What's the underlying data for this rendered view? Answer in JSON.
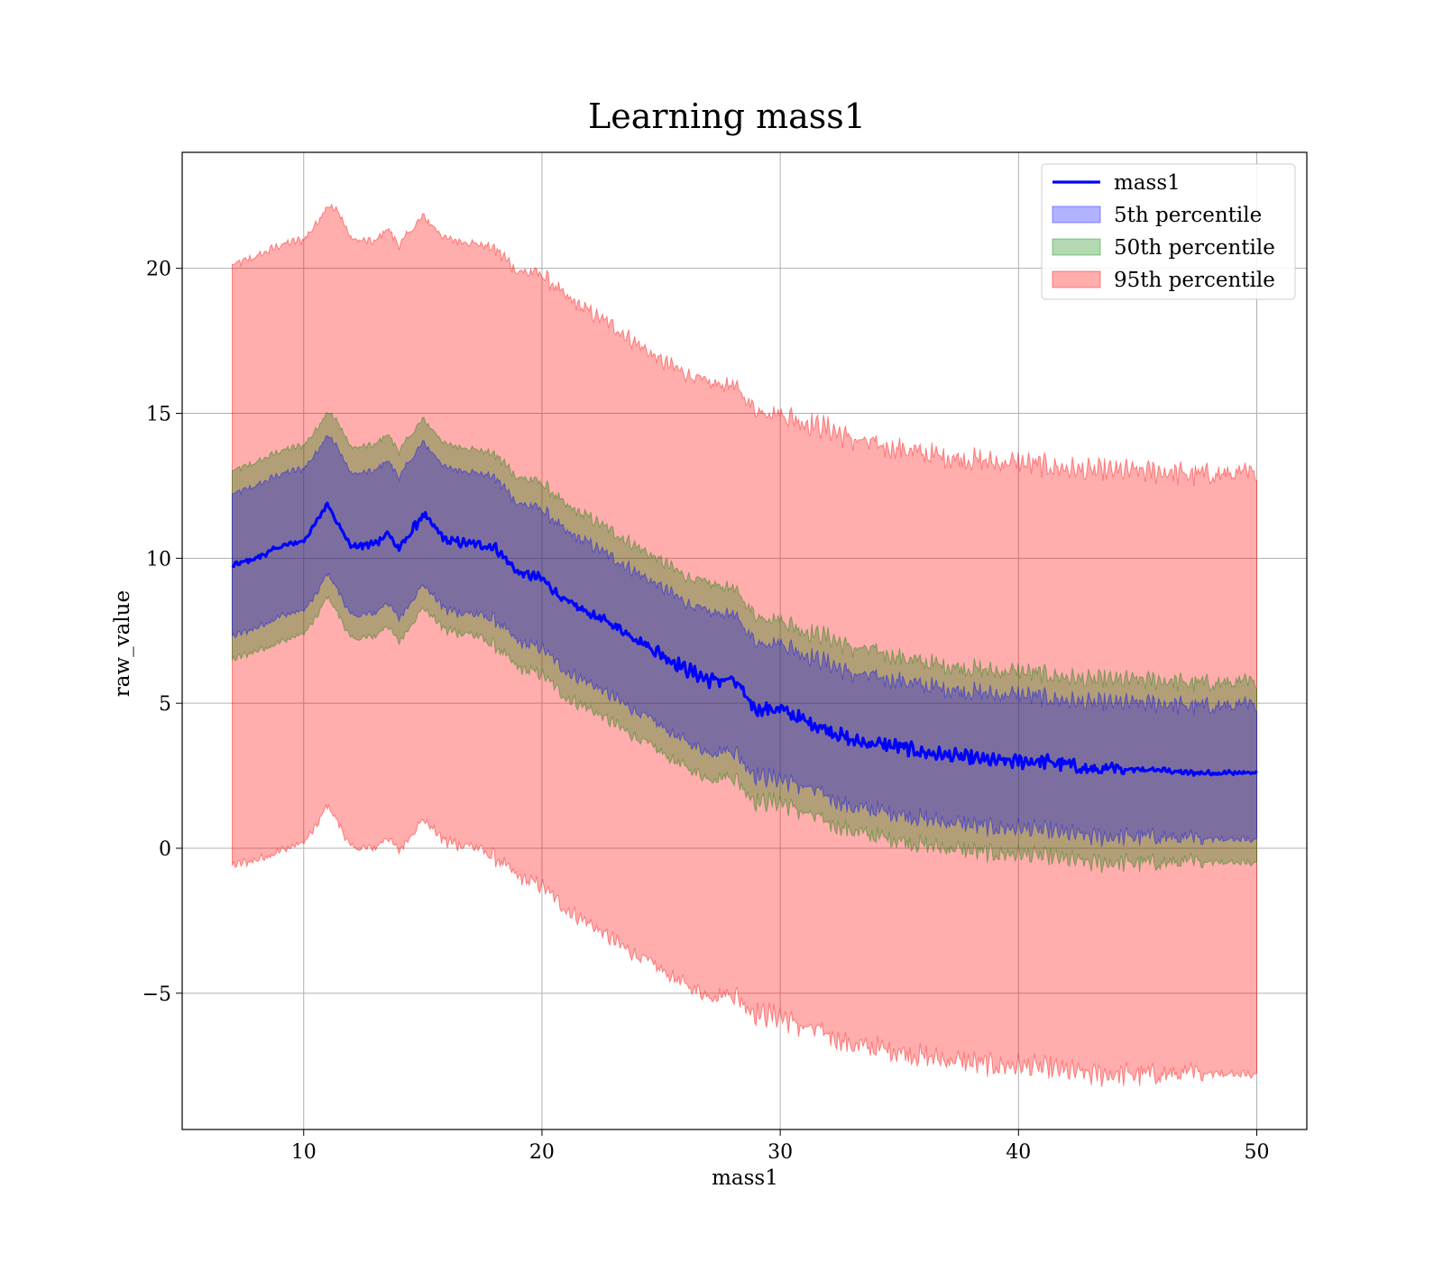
{
  "chart_data": {
    "type": "area",
    "title": "Learning mass1",
    "xlabel": "mass1",
    "ylabel": "raw_value",
    "xlim": [
      4.9,
      52.1
    ],
    "ylim": [
      -9.7,
      24.0
    ],
    "xticks": [
      10,
      20,
      30,
      40,
      50
    ],
    "yticks": [
      -5,
      0,
      5,
      10,
      15,
      20
    ],
    "xtick_labels": [
      "10",
      "20",
      "30",
      "40",
      "50"
    ],
    "ytick_labels": [
      "−5",
      "0",
      "5",
      "10",
      "15",
      "20"
    ],
    "grid": true,
    "legend_position": "top-right",
    "line": {
      "name": "mass1",
      "color": "#0000ff",
      "x": [
        7,
        8,
        9,
        10,
        10.5,
        11,
        11.5,
        12,
        13,
        13.5,
        14,
        15,
        16,
        17,
        18,
        19,
        20,
        21,
        22,
        23,
        24,
        25,
        26,
        27,
        28,
        29,
        30,
        31,
        32,
        33,
        34,
        35,
        36,
        37,
        38,
        39,
        40,
        41,
        42,
        43,
        44,
        45,
        46,
        47,
        48,
        49,
        50
      ],
      "y": [
        9.75,
        10.0,
        10.4,
        10.6,
        11.2,
        11.9,
        11.1,
        10.4,
        10.5,
        10.9,
        10.3,
        11.5,
        10.6,
        10.5,
        10.4,
        9.5,
        9.3,
        8.5,
        8.1,
        7.7,
        7.2,
        6.7,
        6.2,
        5.8,
        5.8,
        4.8,
        4.8,
        4.4,
        4.1,
        3.7,
        3.6,
        3.5,
        3.3,
        3.2,
        3.1,
        3.0,
        3.0,
        3.0,
        2.9,
        2.7,
        2.7,
        2.7,
        2.7,
        2.6,
        2.6,
        2.6,
        2.6
      ]
    },
    "series": [
      {
        "name": "95th percentile",
        "color": "#ff0000",
        "opacity": 0.32,
        "x": [
          7,
          8,
          9,
          10,
          10.5,
          11,
          11.5,
          12,
          13,
          13.5,
          14,
          15,
          16,
          17,
          18,
          19,
          20,
          21,
          22,
          23,
          24,
          25,
          26,
          27,
          28,
          29,
          30,
          31,
          32,
          33,
          34,
          35,
          36,
          37,
          38,
          39,
          40,
          41,
          42,
          43,
          44,
          45,
          46,
          47,
          48,
          49,
          50
        ],
        "upper": [
          20.1,
          20.4,
          20.8,
          21.0,
          21.5,
          22.2,
          21.9,
          21.0,
          20.9,
          21.4,
          20.8,
          21.8,
          21.0,
          20.9,
          20.7,
          19.9,
          19.8,
          19.0,
          18.5,
          18.0,
          17.4,
          16.8,
          16.4,
          16.0,
          16.0,
          15.1,
          15.0,
          14.7,
          14.5,
          14.1,
          13.9,
          13.8,
          13.6,
          13.5,
          13.4,
          13.3,
          13.3,
          13.2,
          13.1,
          13.0,
          13.0,
          13.0,
          13.0,
          12.9,
          12.9,
          12.9,
          12.9
        ],
        "lower": [
          -0.6,
          -0.4,
          -0.1,
          0.2,
          0.7,
          1.5,
          0.8,
          0.0,
          0.0,
          0.4,
          -0.1,
          1.0,
          0.2,
          0.1,
          -0.3,
          -1.0,
          -1.3,
          -2.1,
          -2.6,
          -3.2,
          -3.7,
          -4.2,
          -4.7,
          -5.1,
          -5.0,
          -5.7,
          -5.8,
          -6.2,
          -6.4,
          -6.8,
          -6.9,
          -7.0,
          -7.2,
          -7.3,
          -7.4,
          -7.5,
          -7.5,
          -7.6,
          -7.7,
          -7.8,
          -7.8,
          -7.8,
          -7.8,
          -7.8,
          -7.8,
          -7.8,
          -7.8
        ]
      },
      {
        "name": "50th percentile",
        "color": "#008000",
        "opacity": 0.3,
        "x": [
          7,
          8,
          9,
          10,
          10.5,
          11,
          11.5,
          12,
          13,
          13.5,
          14,
          15,
          16,
          17,
          18,
          19,
          20,
          21,
          22,
          23,
          24,
          25,
          26,
          27,
          28,
          29,
          30,
          31,
          32,
          33,
          34,
          35,
          36,
          37,
          38,
          39,
          40,
          41,
          42,
          43,
          44,
          45,
          46,
          47,
          48,
          49,
          50
        ],
        "upper": [
          13.0,
          13.3,
          13.7,
          13.9,
          14.4,
          15.1,
          14.6,
          13.8,
          13.9,
          14.3,
          13.7,
          14.8,
          13.9,
          13.8,
          13.6,
          12.8,
          12.6,
          11.8,
          11.4,
          10.9,
          10.4,
          9.9,
          9.4,
          9.1,
          9.0,
          8.0,
          7.9,
          7.5,
          7.3,
          6.9,
          6.8,
          6.6,
          6.4,
          6.3,
          6.2,
          6.1,
          6.1,
          6.0,
          5.9,
          5.8,
          5.8,
          5.8,
          5.8,
          5.7,
          5.7,
          5.7,
          5.7
        ],
        "lower": [
          6.5,
          6.8,
          7.1,
          7.4,
          7.9,
          8.7,
          8.0,
          7.2,
          7.3,
          7.7,
          7.1,
          8.3,
          7.5,
          7.4,
          7.0,
          6.2,
          6.0,
          5.2,
          4.8,
          4.3,
          3.8,
          3.3,
          2.8,
          2.4,
          2.5,
          1.6,
          1.6,
          1.2,
          0.9,
          0.6,
          0.4,
          0.3,
          0.1,
          0.0,
          -0.1,
          -0.2,
          -0.2,
          -0.3,
          -0.4,
          -0.5,
          -0.5,
          -0.5,
          -0.5,
          -0.5,
          -0.5,
          -0.5,
          -0.5
        ]
      },
      {
        "name": "5th percentile",
        "color": "#0000ff",
        "opacity": 0.3,
        "x": [
          7,
          8,
          9,
          10,
          10.5,
          11,
          11.5,
          12,
          13,
          13.5,
          14,
          15,
          16,
          17,
          18,
          19,
          20,
          21,
          22,
          23,
          24,
          25,
          26,
          27,
          28,
          29,
          30,
          31,
          32,
          33,
          34,
          35,
          36,
          37,
          38,
          39,
          40,
          41,
          42,
          43,
          44,
          45,
          46,
          47,
          48,
          49,
          50
        ],
        "upper": [
          12.2,
          12.5,
          12.9,
          13.1,
          13.6,
          14.3,
          13.7,
          12.9,
          13.0,
          13.4,
          12.8,
          14.0,
          13.1,
          13.0,
          12.8,
          11.9,
          11.7,
          10.9,
          10.5,
          10.0,
          9.5,
          9.0,
          8.5,
          8.1,
          8.1,
          7.1,
          7.1,
          6.7,
          6.4,
          6.0,
          5.9,
          5.8,
          5.6,
          5.5,
          5.4,
          5.3,
          5.3,
          5.2,
          5.1,
          5.0,
          5.0,
          5.0,
          5.0,
          4.9,
          4.9,
          4.9,
          4.9
        ],
        "lower": [
          7.3,
          7.6,
          8.0,
          8.2,
          8.7,
          9.5,
          8.8,
          8.0,
          8.1,
          8.5,
          7.9,
          9.1,
          8.2,
          8.1,
          7.9,
          7.1,
          6.9,
          6.1,
          5.7,
          5.2,
          4.7,
          4.2,
          3.7,
          3.3,
          3.4,
          2.5,
          2.4,
          2.1,
          1.8,
          1.4,
          1.3,
          1.2,
          1.0,
          0.9,
          0.8,
          0.7,
          0.7,
          0.6,
          0.5,
          0.4,
          0.4,
          0.4,
          0.4,
          0.3,
          0.3,
          0.3,
          0.3
        ]
      }
    ],
    "legend": [
      {
        "label": "mass1",
        "kind": "line",
        "color": "#0000ff"
      },
      {
        "label": "5th percentile",
        "kind": "patch",
        "color": "#0000ff",
        "opacity": 0.3
      },
      {
        "label": "50th percentile",
        "kind": "patch",
        "color": "#008000",
        "opacity": 0.3
      },
      {
        "label": "95th percentile",
        "kind": "patch",
        "color": "#ff0000",
        "opacity": 0.32
      }
    ]
  }
}
